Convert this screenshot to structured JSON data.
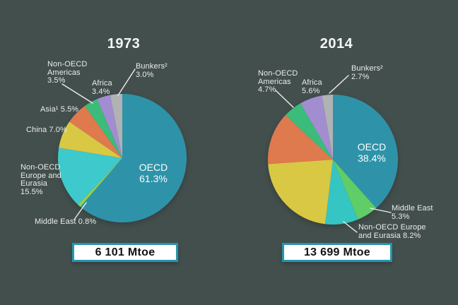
{
  "background_color": "#434F4D",
  "text_color": "#E9ECEA",
  "accent_border_color": "#2596AE",
  "chart_data": [
    {
      "type": "pie",
      "title": "1973",
      "total_label": "6 101 Mtoe",
      "start_angle_deg": 0,
      "direction": "clockwise",
      "slices": [
        {
          "name": "OECD",
          "value": 61.3,
          "color": "#2E93A9",
          "label": "OECD\n61.3%",
          "label_placement": "inside"
        },
        {
          "name": "Middle East",
          "value": 0.8,
          "color": "#93D053",
          "label": "Middle East 0.8%",
          "label_placement": "outside-leader"
        },
        {
          "name": "Non-OECD Europe and Eurasia",
          "value": 15.5,
          "color": "#3EC9CC",
          "label": "Non-OECD\nEurope and\nEurasia\n15.5%",
          "label_placement": "outside"
        },
        {
          "name": "China",
          "value": 7.0,
          "color": "#D9C843",
          "label": "China 7.0%",
          "label_placement": "outside"
        },
        {
          "name": "Asia",
          "value": 5.5,
          "color": "#DF7A4E",
          "label": "Asia¹ 5.5%",
          "label_placement": "outside"
        },
        {
          "name": "Non-OECD Americas",
          "value": 3.5,
          "color": "#3BBC7B",
          "label": "Non-OECD\nAmericas\n3.5%",
          "label_placement": "outside-leader"
        },
        {
          "name": "Africa",
          "value": 3.4,
          "color": "#A28DD0",
          "label": "Africa\n3.4%",
          "label_placement": "outside"
        },
        {
          "name": "Bunkers",
          "value": 3.0,
          "color": "#B0B2B4",
          "label": "Bunkers²\n3.0%",
          "label_placement": "outside-leader"
        }
      ]
    },
    {
      "type": "pie",
      "title": "2014",
      "total_label": "13 699 Mtoe",
      "start_angle_deg": 0,
      "direction": "clockwise",
      "slices": [
        {
          "name": "OECD",
          "value": 38.4,
          "color": "#2E93A9",
          "label": "OECD\n38.4%",
          "label_placement": "inside"
        },
        {
          "name": "Middle East",
          "value": 5.3,
          "color": "#5FCD68",
          "label": "Middle East\n5.3%",
          "label_placement": "outside-leader"
        },
        {
          "name": "Non-OECD Europe and Eurasia",
          "value": 8.2,
          "color": "#35C5C3",
          "label": "Non-OECD Europe\nand Eurasia 8.2%",
          "label_placement": "outside-leader"
        },
        {
          "name": "unlabeled-yellow-slice",
          "value": 22.0,
          "color": "#D9C843",
          "label": "",
          "label_placement": "none",
          "estimated": true
        },
        {
          "name": "unlabeled-orange-slice",
          "value": 13.1,
          "color": "#DF7A4E",
          "label": "",
          "label_placement": "none",
          "estimated": true
        },
        {
          "name": "Non-OECD Americas",
          "value": 4.7,
          "color": "#3BBC7B",
          "label": "Non-OECD\nAmericas\n4.7%",
          "label_placement": "outside-leader"
        },
        {
          "name": "Africa",
          "value": 5.6,
          "color": "#A28DD0",
          "label": "Africa\n5.6%",
          "label_placement": "outside"
        },
        {
          "name": "Bunkers",
          "value": 2.7,
          "color": "#B0B2B4",
          "label": "Bunkers²\n2.7%",
          "label_placement": "outside-leader"
        }
      ]
    }
  ]
}
